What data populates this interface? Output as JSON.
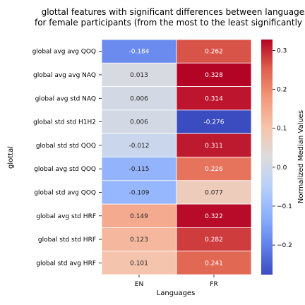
{
  "chart_data": {
    "type": "heatmap",
    "title_lines": [
      "glottal features with significant differences between languages",
      "for female participants (from the most to the least significantly dif"
    ],
    "xlabel": "Languages",
    "ylabel": "glottal",
    "colorbar_label": "Normalized Median Values",
    "colormap": "coolwarm",
    "x_categories": [
      "EN",
      "FR"
    ],
    "y_categories": [
      "global avg avg QOQ",
      "global avg avg NAQ",
      "global avg std NAQ",
      "global std std H1H2",
      "global std std QOQ",
      "global avg std QOQ",
      "global std avg QOQ",
      "global avg std HRF",
      "global std std HRF",
      "global std avg HRF"
    ],
    "values": [
      [
        -0.184,
        0.262
      ],
      [
        0.013,
        0.328
      ],
      [
        0.006,
        0.314
      ],
      [
        0.006,
        -0.276
      ],
      [
        -0.012,
        0.311
      ],
      [
        -0.115,
        0.226
      ],
      [
        -0.109,
        0.077
      ],
      [
        0.149,
        0.322
      ],
      [
        0.123,
        0.282
      ],
      [
        0.101,
        0.241
      ]
    ],
    "labels": [
      [
        "-0.184",
        "0.262"
      ],
      [
        "0.013",
        "0.328"
      ],
      [
        "0.006",
        "0.314"
      ],
      [
        "0.006",
        "-0.276"
      ],
      [
        "-0.012",
        "0.311"
      ],
      [
        "-0.115",
        "0.226"
      ],
      [
        "-0.109",
        "0.077"
      ],
      [
        "0.149",
        "0.322"
      ],
      [
        "0.123",
        "0.282"
      ],
      [
        "0.101",
        "0.241"
      ]
    ],
    "vmin": -0.276,
    "vmax": 0.328,
    "colorbar_ticks": [
      0.3,
      0.2,
      0.1,
      0.0,
      -0.1,
      -0.2
    ],
    "colorbar_tick_labels": [
      "0.3",
      "0.2",
      "0.1",
      "0.0",
      "−0.1",
      "−0.2"
    ]
  }
}
